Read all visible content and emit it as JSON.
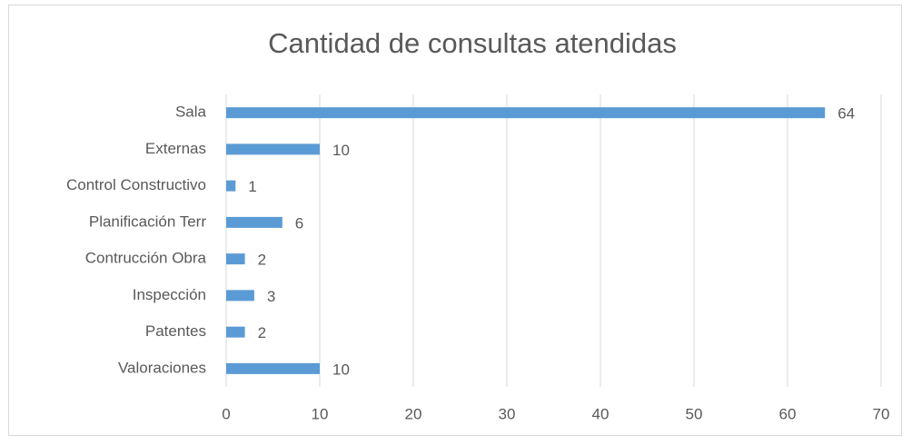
{
  "chart_data": {
    "type": "bar",
    "orientation": "horizontal",
    "title": "Cantidad de consultas atendidas",
    "categories": [
      "Sala",
      "Externas",
      "Control Constructivo",
      "Planificación Terr",
      "Contrucción Obra",
      "Inspección",
      "Patentes",
      "Valoraciones"
    ],
    "values": [
      64,
      10,
      1,
      6,
      2,
      3,
      2,
      10
    ],
    "color": "#5b9bd5",
    "xlim": [
      0,
      70
    ],
    "xticks": [
      0,
      10,
      20,
      30,
      40,
      50,
      60,
      70
    ],
    "grid": true
  }
}
